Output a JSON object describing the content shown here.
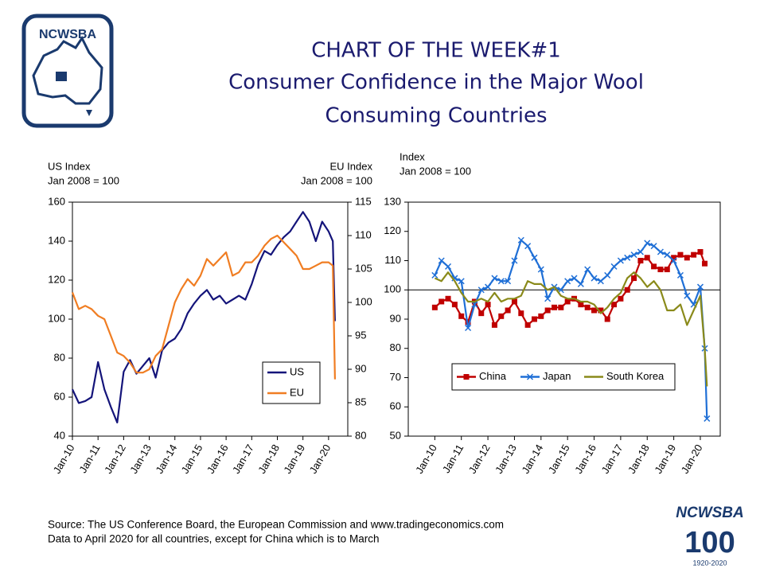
{
  "header": {
    "title": [
      "CHART OF THE WEEK#1",
      "Consumer Confidence in the Major Wool",
      "Consuming Countries"
    ],
    "logo": "NCWSBA"
  },
  "footer": {
    "source": "Source: The US Conference Board, the European Commission and www.tradingeconomics.com",
    "note": "Data to April 2020 for all countries, except for China which is to March",
    "logo": "NCWSBA",
    "centenary": "100",
    "years": "1920-2020"
  },
  "chart_data": [
    {
      "type": "line",
      "y_label": [
        "US Index",
        "Jan 2008 = 100"
      ],
      "y2_label": [
        "EU Index",
        "Jan 2008 = 100"
      ],
      "x": [
        "2010-01",
        "2010-04",
        "2010-07",
        "2010-10",
        "2011-01",
        "2011-04",
        "2011-07",
        "2011-10",
        "2012-01",
        "2012-04",
        "2012-07",
        "2012-10",
        "2013-01",
        "2013-04",
        "2013-07",
        "2013-10",
        "2014-01",
        "2014-04",
        "2014-07",
        "2014-10",
        "2015-01",
        "2015-04",
        "2015-07",
        "2015-10",
        "2016-01",
        "2016-04",
        "2016-07",
        "2016-10",
        "2017-01",
        "2017-04",
        "2017-07",
        "2017-10",
        "2018-01",
        "2018-04",
        "2018-07",
        "2018-10",
        "2019-01",
        "2019-04",
        "2019-07",
        "2019-10",
        "2020-01",
        "2020-03",
        "2020-04"
      ],
      "xlim": [
        "2010-01",
        "2020-10"
      ],
      "xticks": [
        {
          "value": "2010-01",
          "label": "Jan-10"
        },
        {
          "value": "2011-01",
          "label": "Jan-11"
        },
        {
          "value": "2012-01",
          "label": "Jan-12"
        },
        {
          "value": "2013-01",
          "label": "Jan-13"
        },
        {
          "value": "2014-01",
          "label": "Jan-14"
        },
        {
          "value": "2015-01",
          "label": "Jan-15"
        },
        {
          "value": "2016-01",
          "label": "Jan-16"
        },
        {
          "value": "2017-01",
          "label": "Jan-17"
        },
        {
          "value": "2018-01",
          "label": "Jan-18"
        },
        {
          "value": "2019-01",
          "label": "Jan-19"
        },
        {
          "value": "2020-01",
          "label": "Jan-20"
        }
      ],
      "ylim": [
        40,
        160
      ],
      "yticks": [
        40,
        60,
        80,
        100,
        120,
        140,
        160
      ],
      "y2lim": [
        80,
        115
      ],
      "y2ticks": [
        80,
        85,
        90,
        95,
        100,
        105,
        110,
        115
      ],
      "legend": "lower right",
      "series": [
        {
          "name": "US",
          "color": "#14147a",
          "values": [
            64,
            57,
            58,
            60,
            78,
            64,
            55,
            47,
            73,
            79,
            72,
            76,
            80,
            70,
            84,
            88,
            90,
            95,
            103,
            108,
            112,
            115,
            110,
            112,
            108,
            110,
            112,
            110,
            118,
            128,
            135,
            133,
            138,
            142,
            145,
            150,
            155,
            150,
            140,
            150,
            145,
            140,
            99
          ]
        },
        {
          "name": "EU",
          "color": "#f07d22",
          "axis": "y2",
          "values": [
            101.5,
            99,
            99.5,
            99,
            98,
            97.5,
            95,
            92.5,
            92,
            91,
            89.5,
            89.5,
            90,
            92,
            93,
            96.5,
            100,
            102,
            103.5,
            102.5,
            104,
            106.5,
            105.5,
            106.5,
            107.5,
            104,
            104.5,
            106,
            106,
            107,
            108.5,
            109.5,
            110,
            109,
            108,
            107,
            105,
            105,
            105.5,
            106,
            106,
            105.5,
            88.5
          ]
        }
      ]
    },
    {
      "type": "line",
      "y_label": [
        "Index",
        "Jan 2008 = 100"
      ],
      "x": [
        "2010-01",
        "2010-04",
        "2010-07",
        "2010-10",
        "2011-01",
        "2011-04",
        "2011-07",
        "2011-10",
        "2012-01",
        "2012-04",
        "2012-07",
        "2012-10",
        "2013-01",
        "2013-04",
        "2013-07",
        "2013-10",
        "2014-01",
        "2014-04",
        "2014-07",
        "2014-10",
        "2015-01",
        "2015-04",
        "2015-07",
        "2015-10",
        "2016-01",
        "2016-04",
        "2016-07",
        "2016-10",
        "2017-01",
        "2017-04",
        "2017-07",
        "2017-10",
        "2018-01",
        "2018-04",
        "2018-07",
        "2018-10",
        "2019-01",
        "2019-04",
        "2019-07",
        "2019-10",
        "2020-01",
        "2020-03",
        "2020-04"
      ],
      "xlim": [
        "2009-01",
        "2020-10"
      ],
      "xticks": [
        {
          "value": "2010-01",
          "label": "Jan-10"
        },
        {
          "value": "2011-01",
          "label": "Jan-11"
        },
        {
          "value": "2012-01",
          "label": "Jan-12"
        },
        {
          "value": "2013-01",
          "label": "Jan-13"
        },
        {
          "value": "2014-01",
          "label": "Jan-14"
        },
        {
          "value": "2015-01",
          "label": "Jan-15"
        },
        {
          "value": "2016-01",
          "label": "Jan-16"
        },
        {
          "value": "2017-01",
          "label": "Jan-17"
        },
        {
          "value": "2018-01",
          "label": "Jan-18"
        },
        {
          "value": "2019-01",
          "label": "Jan-19"
        },
        {
          "value": "2020-01",
          "label": "Jan-20"
        }
      ],
      "ylim": [
        50,
        130
      ],
      "yticks": [
        50,
        60,
        70,
        80,
        90,
        100,
        110,
        120,
        130
      ],
      "reference_line": 100,
      "legend": "lower left",
      "series": [
        {
          "name": "China",
          "color": "#c00000",
          "marker": "square",
          "values": [
            94,
            96,
            97,
            95,
            91,
            89,
            96,
            92,
            95,
            88,
            91,
            93,
            96,
            92,
            88,
            90,
            91,
            93,
            94,
            94,
            96,
            97,
            95,
            94,
            93,
            93,
            90,
            95,
            97,
            100,
            104,
            110,
            111,
            108,
            107,
            107,
            111,
            112,
            111,
            112,
            113,
            109,
            null
          ]
        },
        {
          "name": "Japan",
          "color": "#1f6fd6",
          "marker": "x",
          "values": [
            105,
            110,
            108,
            104,
            103,
            87,
            95,
            100,
            101,
            104,
            103,
            103,
            110,
            117,
            115,
            111,
            107,
            97,
            101,
            100,
            103,
            104,
            102,
            107,
            104,
            103,
            105,
            108,
            110,
            111,
            112,
            113,
            116,
            115,
            113,
            112,
            110,
            105,
            98,
            95,
            101,
            80,
            56
          ]
        },
        {
          "name": "South Korea",
          "color": "#8a8a1a",
          "values": [
            104,
            103,
            106,
            103,
            99,
            96,
            96,
            97,
            96,
            99,
            96,
            97,
            97,
            98,
            103,
            102,
            102,
            100,
            101,
            98,
            97,
            97,
            96,
            96,
            95,
            92,
            94,
            97,
            99,
            104,
            106,
            104,
            101,
            103,
            100,
            93,
            93,
            95,
            88,
            93,
            98,
            80,
            67
          ]
        }
      ]
    }
  ]
}
